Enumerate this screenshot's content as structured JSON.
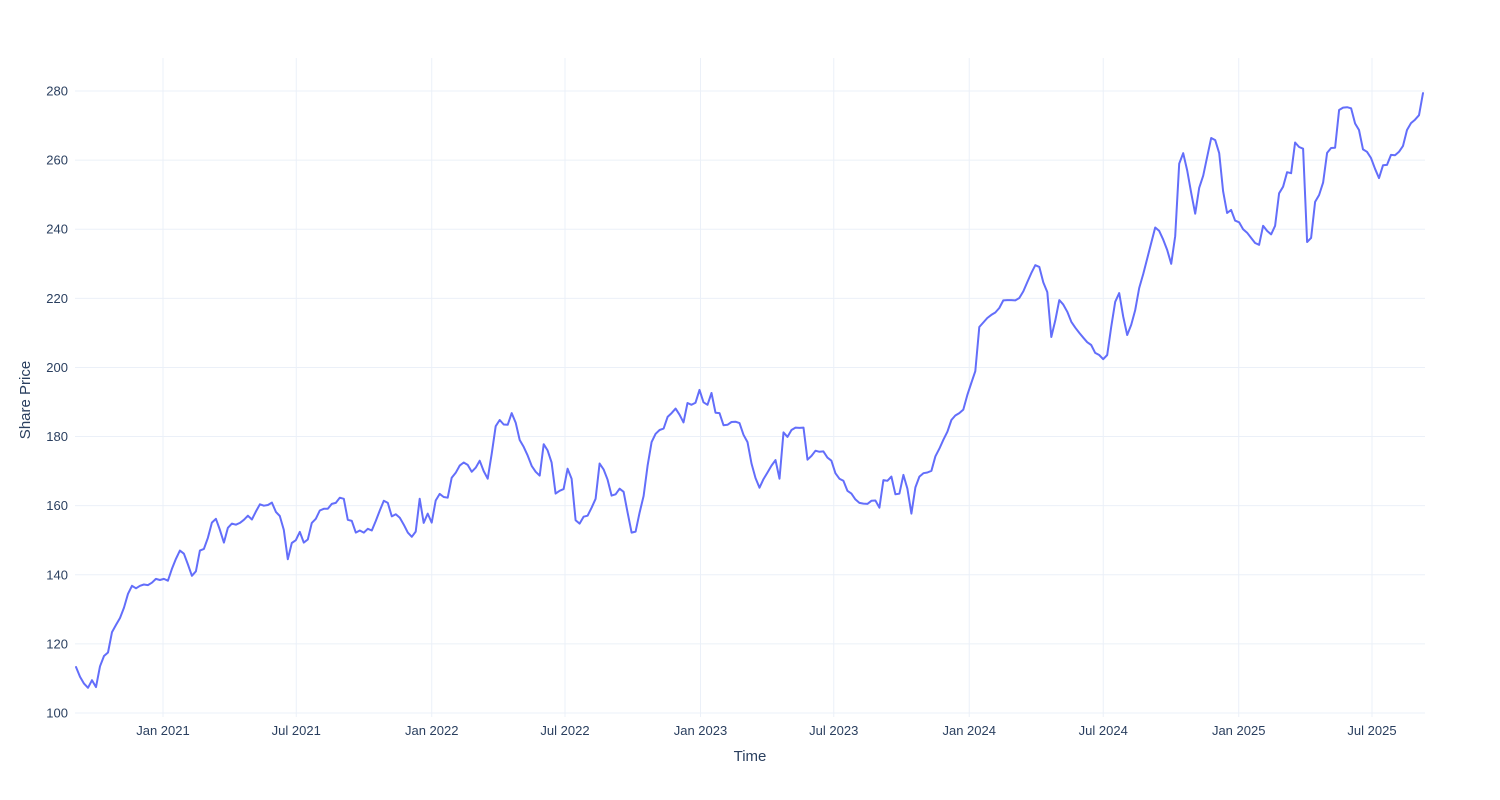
{
  "style": {
    "background": "#ffffff",
    "grid_color": "#ebf0f8",
    "tick_color": "#2a3f5f",
    "line_color": "#636efa"
  },
  "chart_data": {
    "type": "line",
    "title": "",
    "xlabel": "Time",
    "ylabel": "Share Price",
    "grid": true,
    "legend": false,
    "x_axis": {
      "title": "Time",
      "start_date": "2020-09-05",
      "end_date": "2025-09-07",
      "ticks": [
        {
          "label": "Jan 2021",
          "day": 118
        },
        {
          "label": "Jul 2021",
          "day": 299
        },
        {
          "label": "Jan 2022",
          "day": 483
        },
        {
          "label": "Jul 2022",
          "day": 664
        },
        {
          "label": "Jan 2023",
          "day": 848
        },
        {
          "label": "Jul 2023",
          "day": 1029
        },
        {
          "label": "Jan 2024",
          "day": 1213
        },
        {
          "label": "Jul 2024",
          "day": 1395
        },
        {
          "label": "Jan 2025",
          "day": 1579
        },
        {
          "label": "Jul 2025",
          "day": 1760
        }
      ]
    },
    "y_axis": {
      "title": "Share Price",
      "ticks": [
        100,
        120,
        140,
        160,
        180,
        200,
        220,
        240,
        260,
        280
      ],
      "range": [
        99,
        289
      ]
    },
    "series": [
      {
        "name": "Share Price",
        "color": "#636efa",
        "line_width": 2,
        "values": [
          113.3,
          110.5,
          108.5,
          107.3,
          109.5,
          107.5,
          113.5,
          116.5,
          117.5,
          123.4,
          125.5,
          127.5,
          130.5,
          134.5,
          136.8,
          136.1,
          136.8,
          137.2,
          137,
          137.7,
          138.8,
          138.5,
          138.8,
          138.3,
          141.7,
          144.6,
          147,
          146.1,
          143,
          139.7,
          141,
          147,
          147.5,
          150.7,
          155.1,
          156.2,
          153,
          149.3,
          153.6,
          154.8,
          154.5,
          155,
          155.9,
          157.1,
          156,
          158.3,
          160.4,
          160,
          160.2,
          160.9,
          158.2,
          157,
          153,
          144.5,
          149.2,
          150,
          152.4,
          149.3,
          150.2,
          155,
          156.2,
          158.6,
          159.1,
          159.1,
          160.5,
          160.8,
          162.3,
          162,
          155.9,
          155.6,
          152.2,
          152.8,
          152.2,
          153.3,
          152.8,
          155.6,
          158.6,
          161.4,
          160.8,
          156.9,
          157.5,
          156.5,
          154.5,
          152.2,
          151,
          152.5,
          162,
          155,
          157.7,
          155.1,
          161.5,
          163.4,
          162.5,
          162.3,
          168.1,
          169.5,
          171.6,
          172.5,
          171.8,
          169.8,
          171,
          173,
          170,
          167.8,
          175,
          183,
          184.8,
          183.5,
          183.4,
          186.8,
          184,
          179,
          177,
          174.5,
          171.5,
          169.8,
          168.7,
          177.8,
          176,
          172.5,
          163.5,
          164.3,
          164.8,
          170.7,
          167.8,
          155.8,
          154.8,
          156.8,
          157.1,
          159.4,
          162,
          172.2,
          170.5,
          167.5,
          162.9,
          163.3,
          164.9,
          164,
          158,
          152.2,
          152.5,
          158,
          162.8,
          171.6,
          178.4,
          180.8,
          181.9,
          182.3,
          185.7,
          186.8,
          188.1,
          186.3,
          184.1,
          189.7,
          189.2,
          189.8,
          193.5,
          189.9,
          189.2,
          192.6,
          186.9,
          186.8,
          183.3,
          183.4,
          184.2,
          184.3,
          183.9,
          180.5,
          178.4,
          172.2,
          168,
          165.2,
          167.7,
          169.6,
          171.6,
          173.2,
          167.8,
          181.2,
          179.9,
          181.9,
          182.6,
          182.5,
          182.6,
          173.3,
          174.4,
          175.9,
          175.6,
          175.7,
          173.9,
          173,
          169.4,
          167.8,
          167.2,
          164.3,
          163.5,
          161.8,
          160.8,
          160.6,
          160.5,
          161.4,
          161.5,
          159.4,
          167.4,
          167.2,
          168.4,
          163.3,
          163.5,
          168.9,
          164.9,
          157.7,
          165.3,
          168.4,
          169.4,
          169.6,
          170.1,
          174.3,
          176.5,
          179.1,
          181.4,
          184.8,
          186.1,
          186.8,
          187.8,
          192,
          195.5,
          198.9,
          211.7,
          213,
          214.3,
          215.2,
          215.9,
          217.2,
          219.4,
          219.5,
          219.5,
          219.4,
          220.1,
          222,
          224.7,
          227.3,
          229.6,
          229.1,
          224.6,
          221.8,
          208.8,
          213.6,
          219.5,
          218.2,
          216.1,
          213.2,
          211.5,
          210,
          208.6,
          207.3,
          206.5,
          204.2,
          203.6,
          202.4,
          203.6,
          211.7,
          219,
          221.5,
          214.7,
          209.4,
          212.3,
          216.6,
          223,
          227,
          231.5,
          236,
          240.5,
          239.5,
          237,
          234,
          230,
          238,
          259,
          262,
          257,
          250.5,
          244.5,
          252,
          255.5,
          261,
          266.4,
          265.8,
          262,
          251,
          244.7,
          245.6,
          242.5,
          242,
          240,
          239,
          237.5,
          236,
          235.5,
          241,
          239.5,
          238.5,
          241,
          250.4,
          252.3,
          256.5,
          256.2,
          265.1,
          263.8,
          263.3,
          236.3,
          237.5,
          247.9,
          249.9,
          253.5,
          262.1,
          263.5,
          263.6,
          274.5,
          275.2,
          275.3,
          275,
          270.6,
          268.7,
          263.1,
          262.4,
          260.6,
          257.5,
          254.8,
          258.5,
          258.6,
          261.5,
          261.4,
          262.4,
          264.1,
          268.7,
          270.7,
          271.7,
          273,
          279.4
        ]
      }
    ]
  }
}
